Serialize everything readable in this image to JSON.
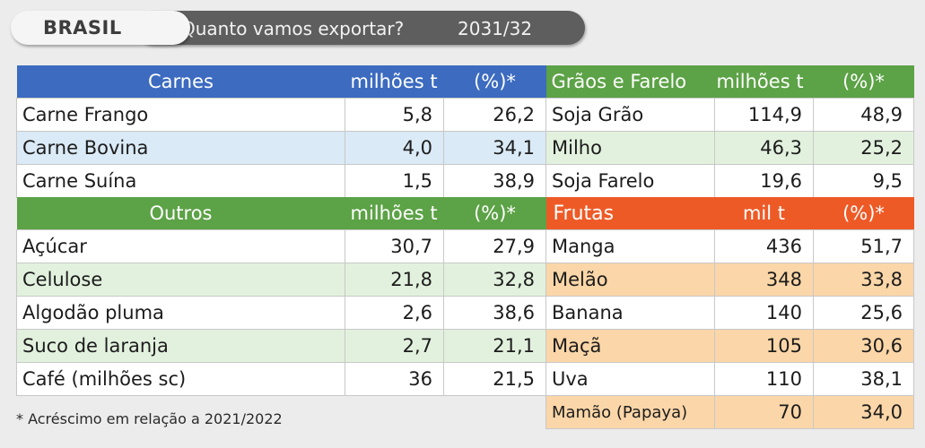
{
  "header": {
    "country": "BRASIL",
    "question": "Quanto vamos exportar?",
    "period": "2031/32"
  },
  "carnes": {
    "title": "Carnes",
    "unit": "milhões t",
    "pct": "(%)*",
    "rows": [
      {
        "name": "Carne Frango",
        "value": "5,8",
        "pct": "26,2"
      },
      {
        "name": "Carne Bovina",
        "value": "4,0",
        "pct": "34,1"
      },
      {
        "name": "Carne Suína",
        "value": "1,5",
        "pct": "38,9"
      }
    ]
  },
  "graos": {
    "title": "Grãos e Farelo",
    "unit": "milhões t",
    "pct": "(%)*",
    "rows": [
      {
        "name": "Soja Grão",
        "value": "114,9",
        "pct": "48,9"
      },
      {
        "name": "Milho",
        "value": "46,3",
        "pct": "25,2"
      },
      {
        "name": "Soja Farelo",
        "value": "19,6",
        "pct": "9,5"
      }
    ]
  },
  "outros": {
    "title": "Outros",
    "unit": "milhões t",
    "pct": "(%)*",
    "rows": [
      {
        "name": "Açúcar",
        "value": "30,7",
        "pct": "27,9"
      },
      {
        "name": "Celulose",
        "value": "21,8",
        "pct": "32,8"
      },
      {
        "name": "Algodão pluma",
        "value": "2,6",
        "pct": "38,6"
      },
      {
        "name": "Suco de laranja",
        "value": "2,7",
        "pct": "21,1"
      },
      {
        "name": "Café (milhões sc)",
        "value": "36",
        "pct": "21,5"
      }
    ]
  },
  "frutas": {
    "title": "Frutas",
    "unit": "mil t",
    "pct": "(%)*",
    "rows": [
      {
        "name": "Manga",
        "value": "436",
        "pct": "51,7"
      },
      {
        "name": "Melão",
        "value": "348",
        "pct": "33,8"
      },
      {
        "name": "Banana",
        "value": "140",
        "pct": "25,6"
      },
      {
        "name": "Maçã",
        "value": "105",
        "pct": "30,6"
      },
      {
        "name": "Uva",
        "value": "110",
        "pct": "38,1"
      },
      {
        "name": "Mamão (Papaya)",
        "value": "70",
        "pct": "34,0"
      }
    ]
  },
  "footnote": "* Acréscimo em relação a 2021/2022",
  "colors": {
    "blue_header": "#3c6bc0",
    "green_header": "#5ca246",
    "orange_header": "#ee5a26",
    "blue_row": "#daeaf6",
    "green_row": "#e2f1de",
    "orange_row": "#fbd6a8"
  }
}
